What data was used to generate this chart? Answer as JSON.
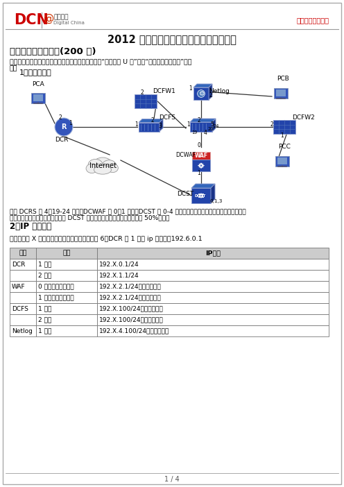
{
  "title_main": "2012 辽宁省技能大赛高职组第二阶段赛题",
  "header_slogan": "－网络创造价值－",
  "section1_title": "第一部分：网络搞建(200 分)",
  "section1_note1": "（注意）第一部分提交所有设备配置文件，并存放到“提交专用 U 盘”中的“网络设备配置文件”目录",
  "section1_note2": "下）",
  "topo_title": "1、拓扑结构图",
  "topo_note1": "图中 DCRS 的 4、19-24 接口；DCWAF 的 0、1 接口；DCST 的 0-4 接口已经连接完毕，不需要学生进行连接，",
  "topo_note2": "比赛途中不得其进行改动。不得使 DCST 重启、关机、断电，否则扣除考试 50%分値。",
  "section2_title": "2、IP 地址规划",
  "ip_note": "地址表中的 X 代表本组组编号。如：一组编号为 6，DCR 的 1 接口 ip 地址为：192.6.0.1",
  "table_headers": [
    "设备",
    "接口",
    "IP地址"
  ],
  "table_rows": [
    [
      "DCR",
      "1 接口",
      "192.X.0.1/24"
    ],
    [
      "",
      "2 接口",
      "192.X.1.1/24"
    ],
    [
      "WAF",
      "0 接口（透明模式）",
      "192.X.2.1/24（管理地址）"
    ],
    [
      "",
      "1 接口（透明模式）",
      "192.X.2.1/24（管理地址）"
    ],
    [
      "DCFS",
      "1 接口",
      "192.X.100/24（管理地址）"
    ],
    [
      "",
      "2 接口",
      "192.X.100/24（管理地址）"
    ],
    [
      "Netlog",
      "1 接口",
      "192.X.4.100/24（管理地址）"
    ]
  ],
  "page_footer": "1 / 4",
  "bg_color": "#ffffff"
}
